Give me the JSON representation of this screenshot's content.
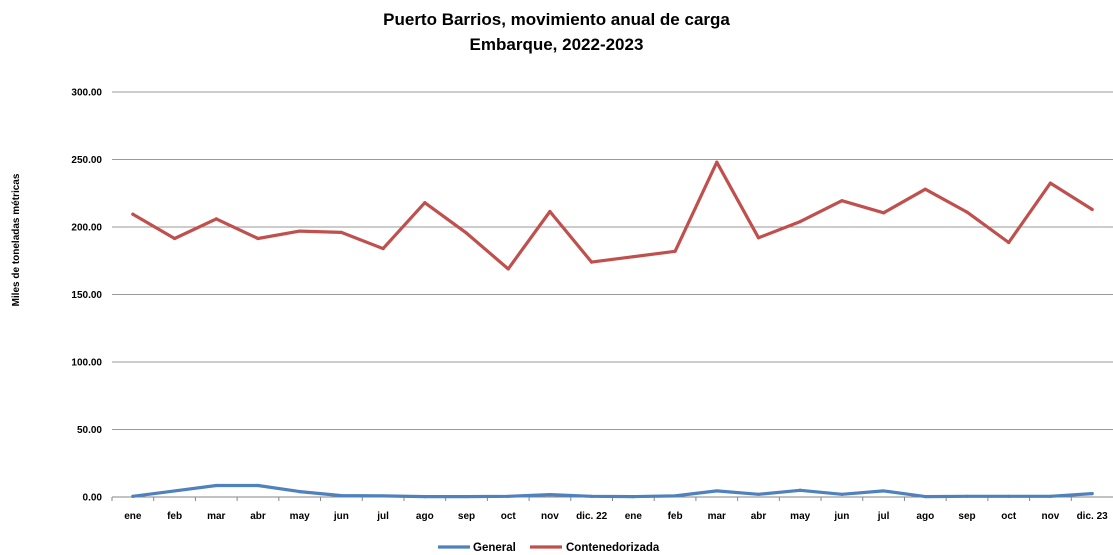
{
  "chart_data": {
    "type": "line",
    "title": "Puerto Barrios, movimiento anual de carga",
    "subtitle": "Embarque, 2022-2023",
    "ylabel": "Miles de toneladas métricas",
    "xlabel": "",
    "ylim": [
      0,
      300
    ],
    "yticks": [
      "0.00",
      "50.00",
      "100.00",
      "150.00",
      "200.00",
      "250.00",
      "300.00"
    ],
    "categories": [
      "ene",
      "feb",
      "mar",
      "abr",
      "may",
      "jun",
      "jul",
      "ago",
      "sep",
      "oct",
      "nov",
      "dic. 22",
      "ene",
      "feb",
      "mar",
      "abr",
      "may",
      "jun",
      "jul",
      "ago",
      "sep",
      "oct",
      "nov",
      "dic. 23"
    ],
    "grid": true,
    "legend_position": "bottom",
    "series": [
      {
        "name": "General",
        "color": "#4f81bd",
        "values": [
          0.5,
          4.5,
          8.5,
          8.5,
          4.0,
          1.0,
          0.8,
          0.3,
          0.3,
          0.5,
          1.8,
          0.5,
          0.3,
          0.8,
          4.5,
          2.0,
          5.0,
          2.0,
          4.5,
          0.3,
          0.5,
          0.5,
          0.5,
          2.5
        ]
      },
      {
        "name": "Contenedorizada",
        "color": "#c0504d",
        "values": [
          209.5,
          191.5,
          206.0,
          191.5,
          197.0,
          196.0,
          184.0,
          218.0,
          195.5,
          169.0,
          211.5,
          174.0,
          178.0,
          182.0,
          248.0,
          192.0,
          204.0,
          219.5,
          210.5,
          228.0,
          211.0,
          188.5,
          232.5,
          213.0
        ]
      }
    ]
  }
}
